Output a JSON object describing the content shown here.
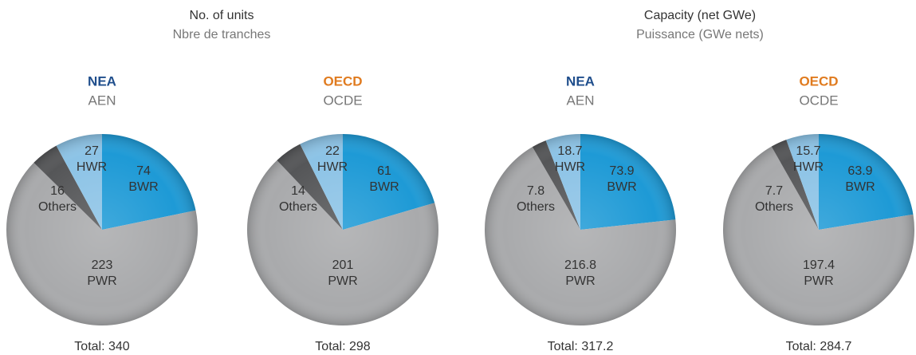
{
  "headers": [
    {
      "title": "No. of units",
      "subtitle": "Nbre de tranches"
    },
    {
      "title": "Capacity (net GWe)",
      "subtitle": "Puissance (GWe nets)"
    }
  ],
  "chart_data": [
    {
      "type": "pie",
      "title": "NEA",
      "title_color": "#1f4e8c",
      "subtitle": "AEN",
      "categories": [
        "BWR",
        "PWR",
        "Others",
        "HWR"
      ],
      "values": [
        74,
        223,
        16,
        27
      ],
      "colors": [
        "#1e9ad6",
        "#a9aaac",
        "#555658",
        "#8cc3e6"
      ],
      "total": "Total: 340"
    },
    {
      "type": "pie",
      "title": "OECD",
      "title_color": "#e07b1f",
      "subtitle": "OCDE",
      "categories": [
        "BWR",
        "PWR",
        "Others",
        "HWR"
      ],
      "values": [
        61,
        201,
        14,
        22
      ],
      "colors": [
        "#1e9ad6",
        "#a9aaac",
        "#555658",
        "#8cc3e6"
      ],
      "total": "Total: 298"
    },
    {
      "type": "pie",
      "title": "NEA",
      "title_color": "#1f4e8c",
      "subtitle": "AEN",
      "categories": [
        "BWR",
        "PWR",
        "Others",
        "HWR"
      ],
      "values": [
        73.9,
        216.8,
        7.8,
        18.7
      ],
      "colors": [
        "#1e9ad6",
        "#a9aaac",
        "#555658",
        "#8cc3e6"
      ],
      "total": "Total: 317.2"
    },
    {
      "type": "pie",
      "title": "OECD",
      "title_color": "#e07b1f",
      "subtitle": "OCDE",
      "categories": [
        "BWR",
        "PWR",
        "Others",
        "HWR"
      ],
      "values": [
        63.9,
        197.4,
        7.7,
        15.7
      ],
      "colors": [
        "#1e9ad6",
        "#a9aaac",
        "#555658",
        "#8cc3e6"
      ],
      "total": "Total: 284.7"
    }
  ]
}
